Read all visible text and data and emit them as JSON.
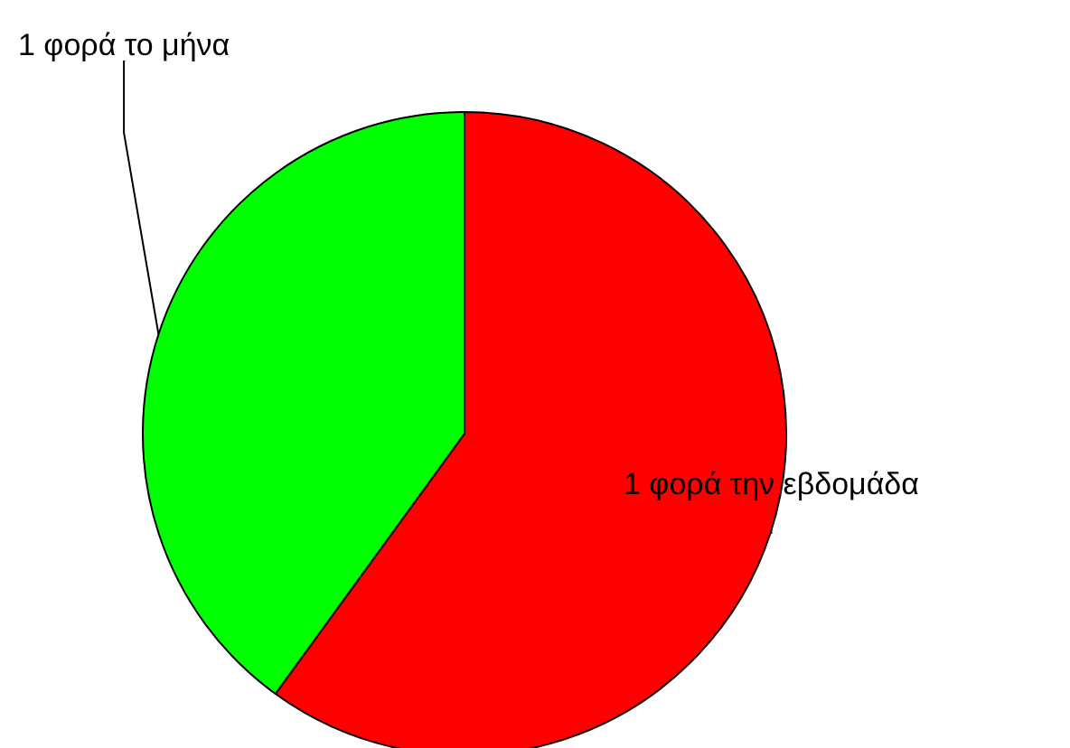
{
  "chart_data": {
    "type": "pie",
    "categories": [
      "1 φορά την εβδομάδα",
      "1 φορά το μήνα"
    ],
    "values": [
      60,
      40
    ],
    "colors": [
      "#ff0000",
      "#00ff00"
    ],
    "legend": false
  }
}
